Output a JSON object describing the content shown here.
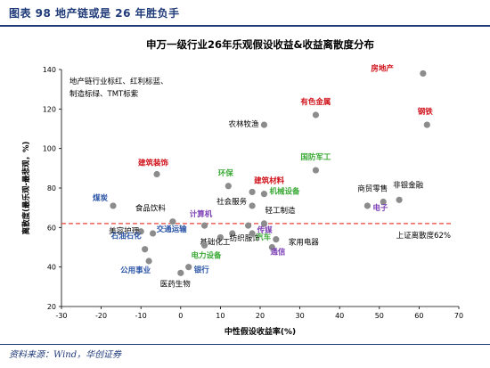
{
  "header": {
    "title": "图表 98   地产链或是 26 年胜负手"
  },
  "footer": {
    "source": "资料来源：Wind，华创证券"
  },
  "colors": {
    "brand": "#1f3a78",
    "point": "#8c8c8c",
    "ref_line": "#e8423a",
    "label_black": "#000000",
    "label_red": "#d0121b",
    "label_blue": "#2b55a6",
    "label_green": "#3aa935",
    "label_purple": "#7b3fb5"
  },
  "chart_data": {
    "type": "scatter",
    "title": "申万一级行业26年乐观假设收益&收益离散度分布",
    "xlabel": "中性假设收益率(%)",
    "ylabel": "离散度(最乐观-最悲观，%)",
    "xlim": [
      -30,
      70
    ],
    "ylim": [
      20,
      140
    ],
    "xticks": [
      -30,
      -20,
      -10,
      0,
      10,
      20,
      30,
      40,
      50,
      60,
      70
    ],
    "yticks": [
      20,
      40,
      60,
      80,
      100,
      120,
      140
    ],
    "grid": false,
    "reference_line": {
      "y": 62,
      "label": "上证离散度62%",
      "style": "dashed"
    },
    "legend_note": {
      "line1": "地产链行业标红、红利标蓝、",
      "line2": "制造标绿、TMT标紫"
    },
    "points": [
      {
        "name": "房地产",
        "x": 61,
        "y": 138,
        "group": "red"
      },
      {
        "name": "有色金属",
        "x": 34,
        "y": 117,
        "group": "red"
      },
      {
        "name": "钢铁",
        "x": 62,
        "y": 112,
        "group": "red"
      },
      {
        "name": "农林牧渔",
        "x": 21,
        "y": 112,
        "group": "black"
      },
      {
        "name": "建筑装饰",
        "x": -6,
        "y": 87,
        "group": "red"
      },
      {
        "name": "国防军工",
        "x": 34,
        "y": 89,
        "group": "green"
      },
      {
        "name": "环保",
        "x": 12,
        "y": 81,
        "group": "green"
      },
      {
        "name": "建筑材料",
        "x": 18,
        "y": 78,
        "group": "red"
      },
      {
        "name": "机械设备",
        "x": 21,
        "y": 77,
        "group": "green"
      },
      {
        "name": "煤炭",
        "x": -17,
        "y": 71,
        "group": "blue"
      },
      {
        "name": "商贸零售",
        "x": 51,
        "y": 73,
        "group": "black"
      },
      {
        "name": "非银金融",
        "x": 55,
        "y": 74,
        "group": "black"
      },
      {
        "name": "电子",
        "x": 47,
        "y": 71,
        "group": "purple"
      },
      {
        "name": "社会服务",
        "x": 18,
        "y": 71,
        "group": "black"
      },
      {
        "name": "食品饮料",
        "x": -2,
        "y": 63,
        "group": "black"
      },
      {
        "name": "计算机",
        "x": 6,
        "y": 61,
        "group": "purple"
      },
      {
        "name": "轻工制造",
        "x": 21,
        "y": 62,
        "group": "black"
      },
      {
        "name": "传媒",
        "x": 17,
        "y": 61,
        "group": "purple"
      },
      {
        "name": "美容护理",
        "x": -10,
        "y": 58,
        "group": "black"
      },
      {
        "name": "交通运输",
        "x": -7,
        "y": 57,
        "group": "blue"
      },
      {
        "name": "基础化工",
        "x": 10,
        "y": 55,
        "group": "black"
      },
      {
        "name": "纺织服饰",
        "x": 13,
        "y": 57,
        "group": "black"
      },
      {
        "name": "汽车",
        "x": 18,
        "y": 57,
        "group": "green"
      },
      {
        "name": "家用电器",
        "x": 24,
        "y": 54,
        "group": "black"
      },
      {
        "name": "石油石化",
        "x": -9,
        "y": 49,
        "group": "blue"
      },
      {
        "name": "电力设备",
        "x": 6,
        "y": 51,
        "group": "green"
      },
      {
        "name": "通信",
        "x": 23,
        "y": 50,
        "group": "purple"
      },
      {
        "name": "公用事业",
        "x": -8,
        "y": 43,
        "group": "blue"
      },
      {
        "name": "银行",
        "x": 2,
        "y": 40,
        "group": "blue"
      },
      {
        "name": "医药生物",
        "x": 0,
        "y": 37,
        "group": "black"
      }
    ]
  }
}
